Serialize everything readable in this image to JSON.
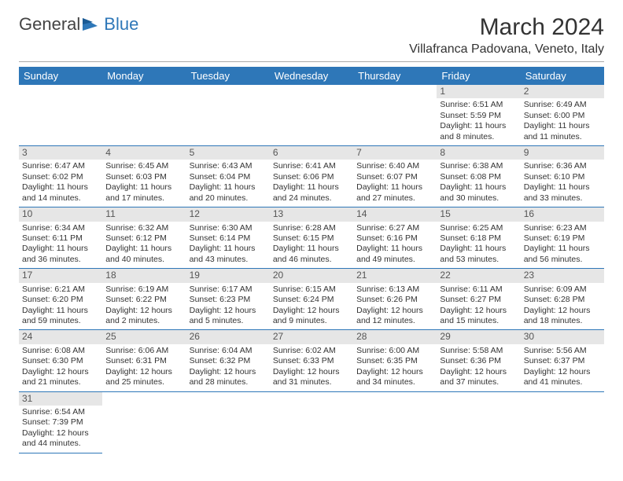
{
  "brand": {
    "general": "General",
    "blue": "Blue"
  },
  "title": "March 2024",
  "location": "Villafranca Padovana, Veneto, Italy",
  "dow": [
    "Sunday",
    "Monday",
    "Tuesday",
    "Wednesday",
    "Thursday",
    "Friday",
    "Saturday"
  ],
  "colors": {
    "header_bg": "#2e77b8",
    "header_fg": "#ffffff",
    "daynum_bg": "#e6e6e6",
    "rule": "#2e77b8"
  },
  "weeks": [
    [
      null,
      null,
      null,
      null,
      null,
      {
        "n": "1",
        "sr": "Sunrise: 6:51 AM",
        "ss": "Sunset: 5:59 PM",
        "dl": "Daylight: 11 hours and 8 minutes."
      },
      {
        "n": "2",
        "sr": "Sunrise: 6:49 AM",
        "ss": "Sunset: 6:00 PM",
        "dl": "Daylight: 11 hours and 11 minutes."
      }
    ],
    [
      {
        "n": "3",
        "sr": "Sunrise: 6:47 AM",
        "ss": "Sunset: 6:02 PM",
        "dl": "Daylight: 11 hours and 14 minutes."
      },
      {
        "n": "4",
        "sr": "Sunrise: 6:45 AM",
        "ss": "Sunset: 6:03 PM",
        "dl": "Daylight: 11 hours and 17 minutes."
      },
      {
        "n": "5",
        "sr": "Sunrise: 6:43 AM",
        "ss": "Sunset: 6:04 PM",
        "dl": "Daylight: 11 hours and 20 minutes."
      },
      {
        "n": "6",
        "sr": "Sunrise: 6:41 AM",
        "ss": "Sunset: 6:06 PM",
        "dl": "Daylight: 11 hours and 24 minutes."
      },
      {
        "n": "7",
        "sr": "Sunrise: 6:40 AM",
        "ss": "Sunset: 6:07 PM",
        "dl": "Daylight: 11 hours and 27 minutes."
      },
      {
        "n": "8",
        "sr": "Sunrise: 6:38 AM",
        "ss": "Sunset: 6:08 PM",
        "dl": "Daylight: 11 hours and 30 minutes."
      },
      {
        "n": "9",
        "sr": "Sunrise: 6:36 AM",
        "ss": "Sunset: 6:10 PM",
        "dl": "Daylight: 11 hours and 33 minutes."
      }
    ],
    [
      {
        "n": "10",
        "sr": "Sunrise: 6:34 AM",
        "ss": "Sunset: 6:11 PM",
        "dl": "Daylight: 11 hours and 36 minutes."
      },
      {
        "n": "11",
        "sr": "Sunrise: 6:32 AM",
        "ss": "Sunset: 6:12 PM",
        "dl": "Daylight: 11 hours and 40 minutes."
      },
      {
        "n": "12",
        "sr": "Sunrise: 6:30 AM",
        "ss": "Sunset: 6:14 PM",
        "dl": "Daylight: 11 hours and 43 minutes."
      },
      {
        "n": "13",
        "sr": "Sunrise: 6:28 AM",
        "ss": "Sunset: 6:15 PM",
        "dl": "Daylight: 11 hours and 46 minutes."
      },
      {
        "n": "14",
        "sr": "Sunrise: 6:27 AM",
        "ss": "Sunset: 6:16 PM",
        "dl": "Daylight: 11 hours and 49 minutes."
      },
      {
        "n": "15",
        "sr": "Sunrise: 6:25 AM",
        "ss": "Sunset: 6:18 PM",
        "dl": "Daylight: 11 hours and 53 minutes."
      },
      {
        "n": "16",
        "sr": "Sunrise: 6:23 AM",
        "ss": "Sunset: 6:19 PM",
        "dl": "Daylight: 11 hours and 56 minutes."
      }
    ],
    [
      {
        "n": "17",
        "sr": "Sunrise: 6:21 AM",
        "ss": "Sunset: 6:20 PM",
        "dl": "Daylight: 11 hours and 59 minutes."
      },
      {
        "n": "18",
        "sr": "Sunrise: 6:19 AM",
        "ss": "Sunset: 6:22 PM",
        "dl": "Daylight: 12 hours and 2 minutes."
      },
      {
        "n": "19",
        "sr": "Sunrise: 6:17 AM",
        "ss": "Sunset: 6:23 PM",
        "dl": "Daylight: 12 hours and 5 minutes."
      },
      {
        "n": "20",
        "sr": "Sunrise: 6:15 AM",
        "ss": "Sunset: 6:24 PM",
        "dl": "Daylight: 12 hours and 9 minutes."
      },
      {
        "n": "21",
        "sr": "Sunrise: 6:13 AM",
        "ss": "Sunset: 6:26 PM",
        "dl": "Daylight: 12 hours and 12 minutes."
      },
      {
        "n": "22",
        "sr": "Sunrise: 6:11 AM",
        "ss": "Sunset: 6:27 PM",
        "dl": "Daylight: 12 hours and 15 minutes."
      },
      {
        "n": "23",
        "sr": "Sunrise: 6:09 AM",
        "ss": "Sunset: 6:28 PM",
        "dl": "Daylight: 12 hours and 18 minutes."
      }
    ],
    [
      {
        "n": "24",
        "sr": "Sunrise: 6:08 AM",
        "ss": "Sunset: 6:30 PM",
        "dl": "Daylight: 12 hours and 21 minutes."
      },
      {
        "n": "25",
        "sr": "Sunrise: 6:06 AM",
        "ss": "Sunset: 6:31 PM",
        "dl": "Daylight: 12 hours and 25 minutes."
      },
      {
        "n": "26",
        "sr": "Sunrise: 6:04 AM",
        "ss": "Sunset: 6:32 PM",
        "dl": "Daylight: 12 hours and 28 minutes."
      },
      {
        "n": "27",
        "sr": "Sunrise: 6:02 AM",
        "ss": "Sunset: 6:33 PM",
        "dl": "Daylight: 12 hours and 31 minutes."
      },
      {
        "n": "28",
        "sr": "Sunrise: 6:00 AM",
        "ss": "Sunset: 6:35 PM",
        "dl": "Daylight: 12 hours and 34 minutes."
      },
      {
        "n": "29",
        "sr": "Sunrise: 5:58 AM",
        "ss": "Sunset: 6:36 PM",
        "dl": "Daylight: 12 hours and 37 minutes."
      },
      {
        "n": "30",
        "sr": "Sunrise: 5:56 AM",
        "ss": "Sunset: 6:37 PM",
        "dl": "Daylight: 12 hours and 41 minutes."
      }
    ],
    [
      {
        "n": "31",
        "sr": "Sunrise: 6:54 AM",
        "ss": "Sunset: 7:39 PM",
        "dl": "Daylight: 12 hours and 44 minutes."
      },
      null,
      null,
      null,
      null,
      null,
      null
    ]
  ]
}
